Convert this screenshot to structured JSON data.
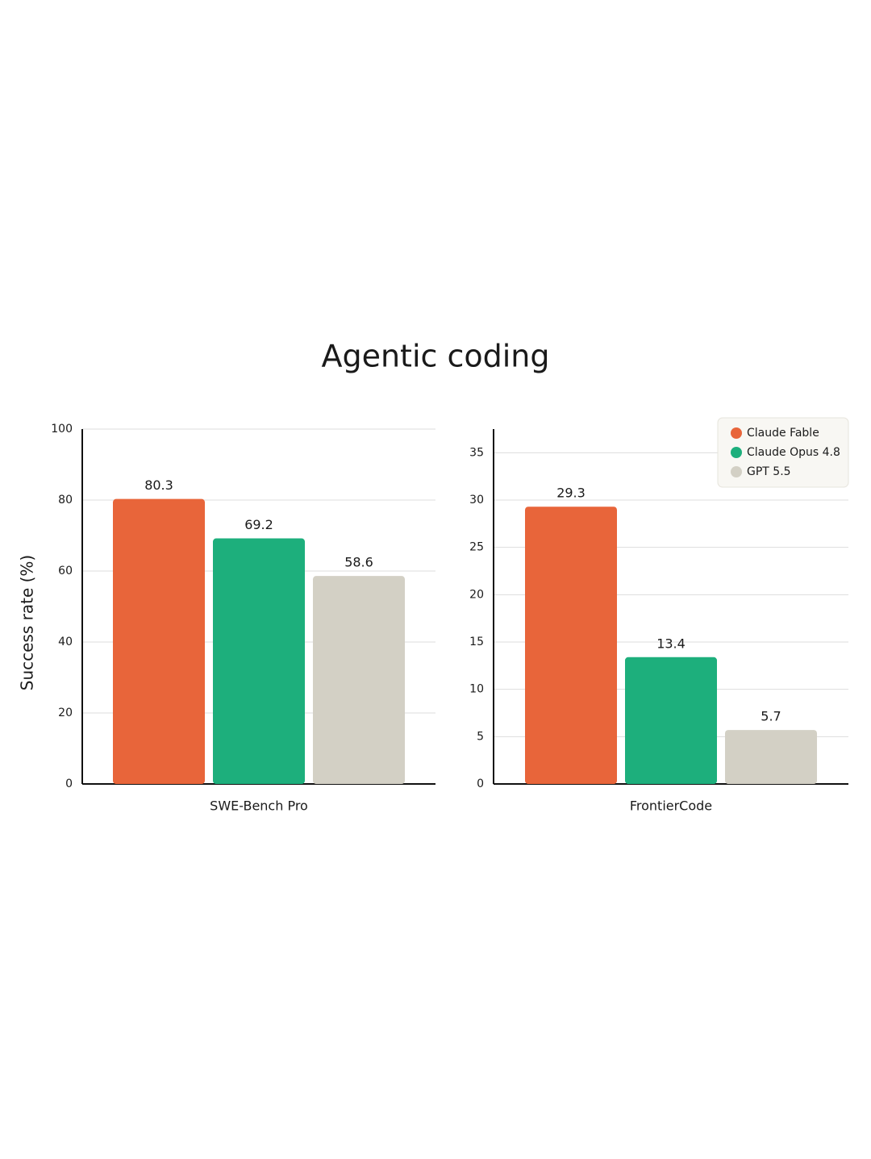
{
  "title": "Agentic coding",
  "chart_data": [
    {
      "type": "bar",
      "y_label": "Success rate (%)",
      "categories": [
        "SWE-Bench Pro"
      ],
      "series": [
        {
          "color": "#e8653a",
          "values": [
            80.3
          ]
        },
        {
          "color": "#1daf7c",
          "values": [
            69.2
          ]
        },
        {
          "color": "#d3d0c5",
          "values": [
            58.6
          ]
        }
      ],
      "ylim": [
        0,
        100
      ],
      "yticks": [
        0,
        20,
        40,
        60,
        80,
        100
      ],
      "grid": true
    },
    {
      "type": "bar",
      "categories": [
        "FrontierCode"
      ],
      "series": [
        {
          "name": "Claude Fable",
          "color": "#e8653a",
          "values": [
            29.3
          ]
        },
        {
          "name": "Claude Opus 4.8",
          "color": "#1daf7c",
          "values": [
            13.4
          ]
        },
        {
          "name": "GPT 5.5",
          "color": "#d3d0c5",
          "values": [
            5.7
          ]
        }
      ],
      "ylim": [
        0,
        37.5
      ],
      "yticks": [
        0,
        5,
        10,
        15,
        20,
        25,
        30,
        35
      ],
      "grid": true,
      "legend": "upper right"
    }
  ]
}
